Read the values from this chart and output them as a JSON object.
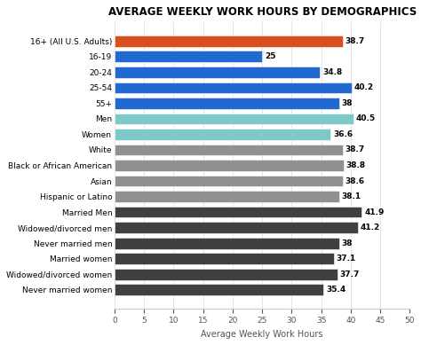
{
  "title": "AVERAGE WEEKLY WORK HOURS BY DEMOGRAPHICS",
  "xlabel": "Average Weekly Work Hours",
  "categories": [
    "Never married women",
    "Widowed/divorced women",
    "Married women",
    "Never married men",
    "Widowed/divorced men",
    "Married Men",
    "Hispanic or Latino",
    "Asian",
    "Black or African American",
    "White",
    "Women",
    "Men",
    "55+",
    "25-54",
    "20-24",
    "16-19",
    "16+ (All U.S. Adults)"
  ],
  "values": [
    35.4,
    37.7,
    37.1,
    38.0,
    41.2,
    41.9,
    38.1,
    38.6,
    38.8,
    38.7,
    36.6,
    40.5,
    38.0,
    40.2,
    34.8,
    25.0,
    38.7
  ],
  "colors": [
    "#404040",
    "#404040",
    "#404040",
    "#404040",
    "#404040",
    "#404040",
    "#909090",
    "#909090",
    "#909090",
    "#909090",
    "#7ec8c8",
    "#7ec8c8",
    "#2268d1",
    "#2268d1",
    "#2268d1",
    "#2268d1",
    "#d94f1e"
  ],
  "xlim": [
    0,
    50
  ],
  "xticks": [
    0,
    5,
    10,
    15,
    20,
    25,
    30,
    35,
    40,
    45,
    50
  ],
  "background_color": "#ffffff",
  "title_fontsize": 8.5,
  "label_fontsize": 7,
  "value_fontsize": 6.5,
  "ylabel_fontsize": 6.5
}
